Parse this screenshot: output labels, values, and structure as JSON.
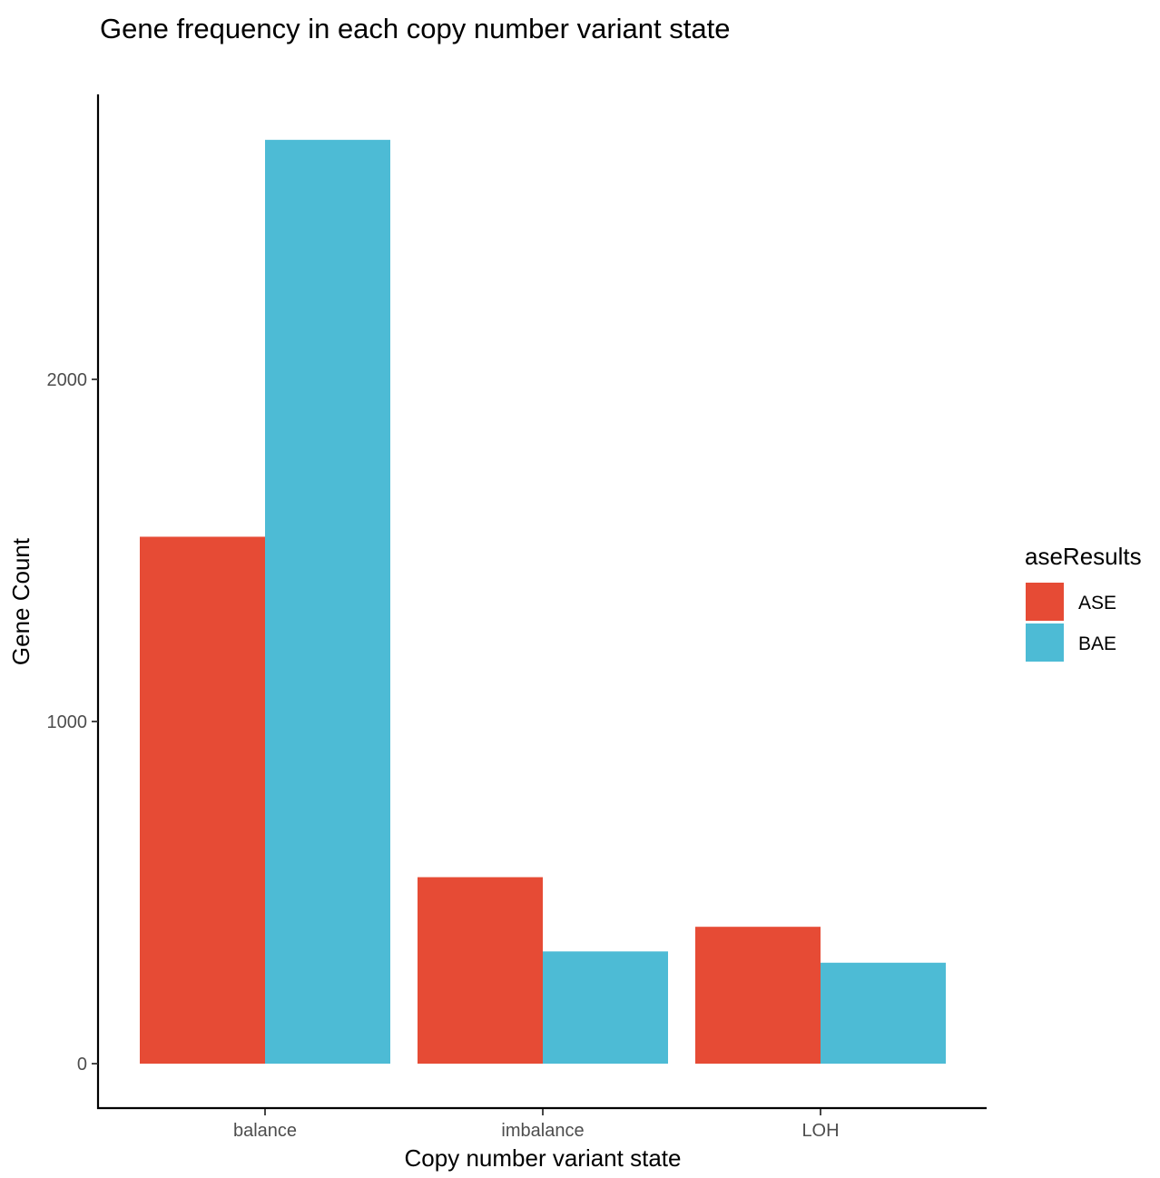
{
  "chart_data": {
    "type": "bar",
    "title": "Gene frequency in each copy number variant state",
    "xlabel": "Copy number variant state",
    "ylabel": "Gene Count",
    "categories": [
      "balance",
      "imbalance",
      "LOH"
    ],
    "series": [
      {
        "name": "ASE",
        "color": "#E64B35",
        "values": [
          1540,
          545,
          400
        ]
      },
      {
        "name": "BAE",
        "color": "#4DBBD5",
        "values": [
          2700,
          328,
          295
        ]
      }
    ],
    "yticks": [
      0,
      1000,
      2000
    ],
    "ylim": [
      -130,
      2840
    ],
    "grid": false,
    "legend": {
      "title": "aseResults",
      "position": "right"
    }
  }
}
